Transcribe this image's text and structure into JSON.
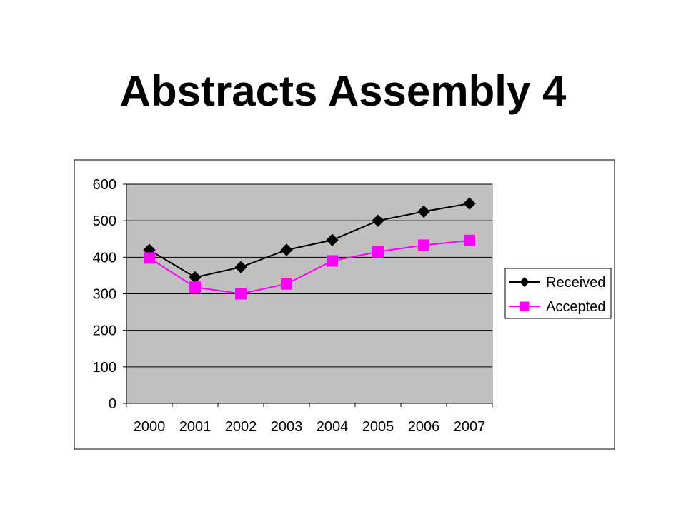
{
  "slide": {
    "title": "Abstracts Assembly 4"
  },
  "chart_data": {
    "type": "line",
    "title": "",
    "xlabel": "",
    "ylabel": "",
    "categories": [
      "2000",
      "2001",
      "2002",
      "2003",
      "2004",
      "2005",
      "2006",
      "2007"
    ],
    "ylim": [
      0,
      600
    ],
    "yticks": [
      0,
      100,
      200,
      300,
      400,
      500,
      600
    ],
    "grid": true,
    "legend_position": "right",
    "plot_background": "#C0C0C0",
    "series": [
      {
        "name": "Received",
        "marker": "diamond",
        "color": "#000000",
        "values": [
          420,
          345,
          373,
          420,
          447,
          500,
          525,
          547
        ]
      },
      {
        "name": "Accepted",
        "marker": "square",
        "color": "#FF00FF",
        "values": [
          398,
          318,
          300,
          327,
          390,
          415,
          433,
          446
        ]
      }
    ]
  }
}
